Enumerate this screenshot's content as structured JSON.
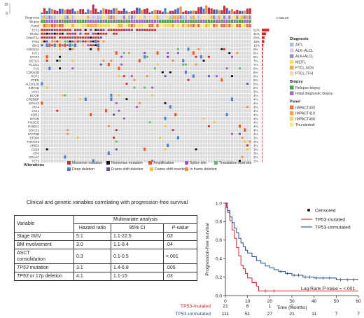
{
  "oncoprint": {
    "mutation_scale_ticks": [
      "10",
      "0"
    ],
    "track_labels": [
      "Diagnosis",
      "Biopsy",
      "Panel"
    ],
    "genes": [
      "TET2",
      "RHOA",
      "DNMT3A",
      "TP53",
      "IDH2",
      "CDKN2A",
      "FAT1",
      "STAT3",
      "SETD2",
      "PLCG1",
      "FAS",
      "CDKN2B",
      "POT1",
      "PTEN",
      "ALOX12B",
      "KMT2D",
      "VAV1",
      "BCOR",
      "CREBBP",
      "EPHA3",
      "IRF4",
      "JAK1",
      "KDR2",
      "MTOR",
      "PIK3CG",
      "ROBO1",
      "SOCS1",
      "STAT5B",
      "EP300",
      "TNFAIP3",
      "ARID2",
      "CD28",
      "ATM",
      "EPHA7",
      "TET3"
    ],
    "percents": [
      "52%",
      "31%",
      "20%",
      "18%",
      "12%",
      "9%",
      "8%",
      "8%",
      "7%",
      "7%",
      "6%",
      "6%",
      "6%",
      "5%",
      "5%",
      "5%",
      "5%",
      "4%",
      "4%",
      "4%",
      "4%",
      "4%",
      "4%",
      "4%",
      "4%",
      "4%",
      "4%",
      "4%",
      "3%",
      "3%",
      "3%",
      "3%",
      "3%",
      "2%",
      "2%"
    ],
    "freq_axis_ticks": [
      "0",
      "50",
      "100"
    ],
    "legend": {
      "diagnosis_title": "Diagnosis",
      "diagnosis": [
        {
          "label": "AITL",
          "color": "#aebfe0"
        },
        {
          "label": "ALK–ALCL",
          "color": "#d7d0ea"
        },
        {
          "label": "ALK+ALCL",
          "color": "#9e86c4"
        },
        {
          "label": "MEITL",
          "color": "#f5e44a"
        },
        {
          "label": "PTCL-NOS",
          "color": "#f3a64a"
        },
        {
          "label": "PTCL-TFH",
          "color": "#f7d7b0"
        }
      ],
      "biopsy_title": "Biopsy",
      "biopsy": [
        {
          "label": "Relapse biopsy",
          "color": "#4ca24c"
        },
        {
          "label": "Initial diagnostic biopsy",
          "color": "#9c6ac0"
        }
      ],
      "panel_title": "Panel",
      "panel": [
        {
          "label": "IMPACT400",
          "color": "#e66a44"
        },
        {
          "label": "IMPACT410",
          "color": "#f3a640"
        },
        {
          "label": "IMPACT468",
          "color": "#f6d45a"
        },
        {
          "label": "Thunderbolt",
          "color": "#f8e88a"
        }
      ]
    },
    "alterations_title": "Alterations",
    "alterations": [
      {
        "label": "Missense mutation",
        "color": "#d62a2a"
      },
      {
        "label": "Nonsense mutation",
        "color": "#111111"
      },
      {
        "label": "Amplification",
        "color": "#e8551e"
      },
      {
        "label": "Splice site",
        "color": "#a84fc4"
      },
      {
        "label": "Translation start site",
        "color": "#5cb86c"
      },
      {
        "label": "Deep deletion",
        "color": "#4a7cc8"
      },
      {
        "label": "Frame shift deletion",
        "color": "#6a4ca8"
      },
      {
        "label": "Frame shift insertion",
        "color": "#f1c232"
      },
      {
        "label": "In frame deletion",
        "color": "#f28a3c"
      }
    ]
  },
  "table": {
    "title": "Clinical and genetic variables correlating with progression-free survival",
    "group_header": "Multivariate analysis",
    "col_variable": "Variable",
    "col_hr": "Hazard ratio",
    "col_ci": "95% CI",
    "col_p": "P-value",
    "rows": [
      {
        "v1": "Stage III/IV",
        "v2": "",
        "hr": "5.1",
        "ci": "1.1-22.5",
        "p": ".03"
      },
      {
        "v1": "BM involvement",
        "v2": "",
        "hr": "3.0",
        "ci": "1.1-8.4",
        "p": ".04"
      },
      {
        "v1": "ASCT",
        "v2": "consolidation",
        "hr": "0.3",
        "ci": "0.1-0.5",
        "p": "<.001"
      },
      {
        "v1": "TP53",
        "v2": " mutation",
        "hr": "3.1",
        "ci": "1.4-6.8",
        "p": ".005"
      },
      {
        "v1": "TP53",
        "v2": " or 17p deletion",
        "hr": "4.1",
        "ci": "1.1-15",
        "p": ".03"
      }
    ]
  },
  "km": {
    "chart_data": {
      "type": "line",
      "xlabel": "Time (months)",
      "ylabel": "Progression-free survival",
      "xlim": [
        0,
        60
      ],
      "ylim": [
        0,
        1
      ],
      "x_ticks": [
        0,
        10,
        20,
        30,
        40,
        50,
        60
      ],
      "y_ticks": [
        0.0,
        0.2,
        0.4,
        0.6,
        0.8,
        1.0
      ],
      "legend_censored": "Censored",
      "annotation_prefix": "Log-Rank ",
      "annotation_p": "P",
      "annotation_suffix": "-value = <.001",
      "series": [
        {
          "name": "TP53-mutated",
          "color": "#c8232b",
          "steps": [
            [
              0,
              1.0
            ],
            [
              0.5,
              0.95
            ],
            [
              1,
              0.9
            ],
            [
              2,
              0.81
            ],
            [
              3,
              0.71
            ],
            [
              4,
              0.62
            ],
            [
              5,
              0.52
            ],
            [
              6,
              0.43
            ],
            [
              7,
              0.33
            ],
            [
              8,
              0.29
            ],
            [
              9,
              0.24
            ],
            [
              10,
              0.19
            ],
            [
              12,
              0.14
            ],
            [
              14,
              0.1
            ],
            [
              15,
              0.05
            ],
            [
              60,
              0.05
            ]
          ]
        },
        {
          "name": "TP53-unmutated",
          "color": "#1f4e8c",
          "steps": [
            [
              0,
              1.0
            ],
            [
              1,
              0.92
            ],
            [
              2,
              0.85
            ],
            [
              3,
              0.79
            ],
            [
              4,
              0.73
            ],
            [
              5,
              0.68
            ],
            [
              6,
              0.62
            ],
            [
              7,
              0.57
            ],
            [
              8,
              0.53
            ],
            [
              9,
              0.49
            ],
            [
              10,
              0.46
            ],
            [
              12,
              0.42
            ],
            [
              14,
              0.38
            ],
            [
              16,
              0.35
            ],
            [
              18,
              0.32
            ],
            [
              20,
              0.3
            ],
            [
              22,
              0.28
            ],
            [
              24,
              0.26
            ],
            [
              27,
              0.24
            ],
            [
              30,
              0.22
            ],
            [
              35,
              0.2
            ],
            [
              40,
              0.19
            ],
            [
              50,
              0.17
            ],
            [
              60,
              0.17
            ]
          ]
        }
      ],
      "censor_marks": [
        {
          "series": 0,
          "x": [
            18,
            22
          ]
        },
        {
          "series": 1,
          "x": [
            25,
            28,
            31,
            33,
            36,
            38,
            41,
            44,
            47,
            52,
            55,
            58
          ]
        }
      ],
      "risk_table": [
        {
          "name": "TP53-mutated",
          "color": "#c8232b",
          "counts": [
            "21",
            "6",
            "1",
            "0"
          ]
        },
        {
          "name": "TP53-unmutated",
          "color": "#1f4e8c",
          "counts": [
            "111",
            "51",
            "27",
            "21",
            "11",
            "7",
            "7"
          ]
        }
      ]
    }
  }
}
